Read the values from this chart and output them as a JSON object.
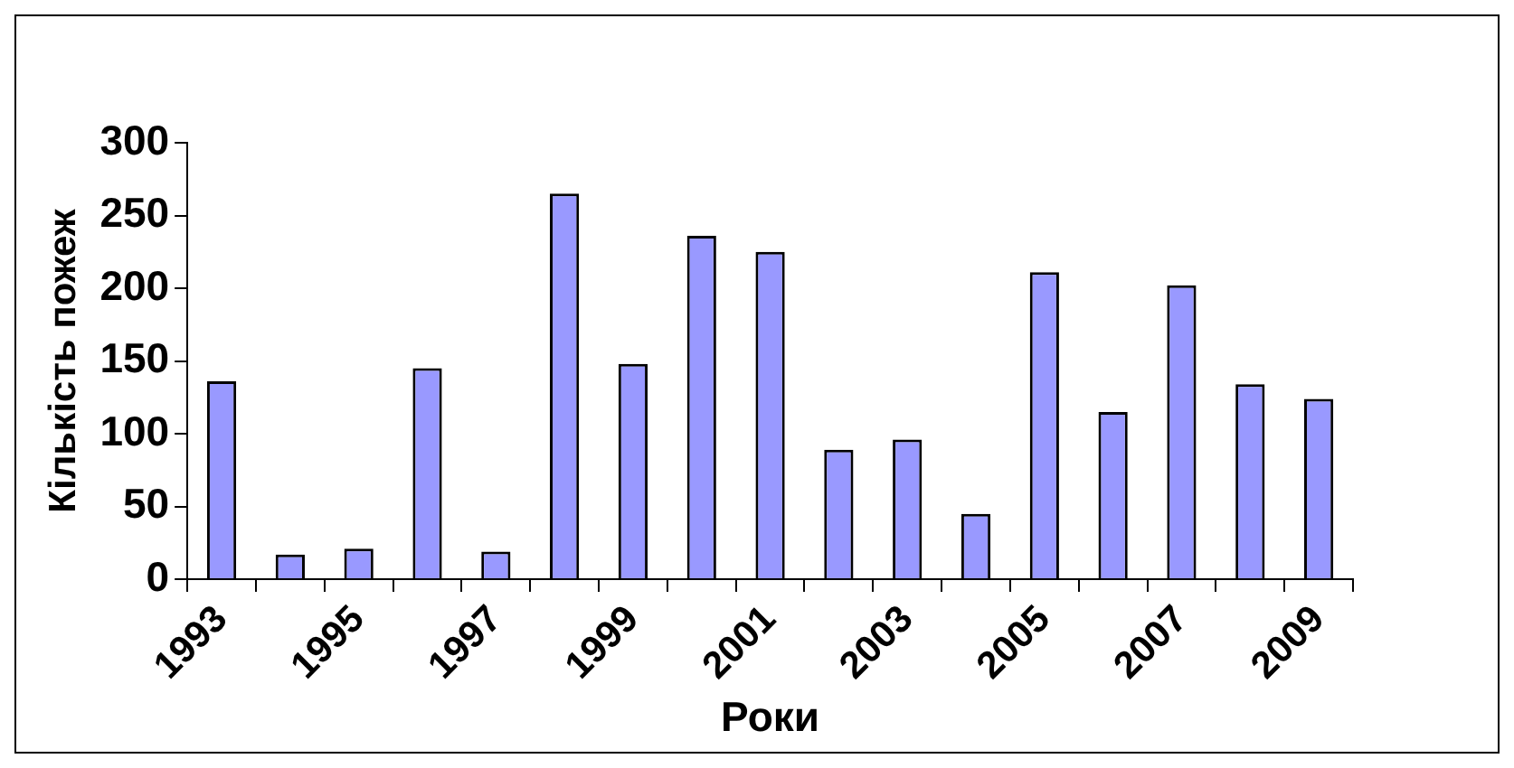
{
  "chart_data": {
    "type": "bar",
    "xlabel": "Роки",
    "ylabel": "Кількість пожеж",
    "categories": [
      "1993",
      null,
      "1995",
      null,
      "1997",
      null,
      "1999",
      null,
      "2001",
      null,
      "2003",
      null,
      "2005",
      null,
      "2007",
      null,
      "2009"
    ],
    "values": [
      136,
      17,
      21,
      145,
      19,
      265,
      148,
      236,
      225,
      89,
      96,
      45,
      211,
      115,
      202,
      134,
      124
    ],
    "color": "#9999ff",
    "ylim": [
      0,
      300
    ],
    "yticks": [
      0,
      50,
      100,
      150,
      200,
      250,
      300
    ],
    "grid": false,
    "legend": false
  }
}
